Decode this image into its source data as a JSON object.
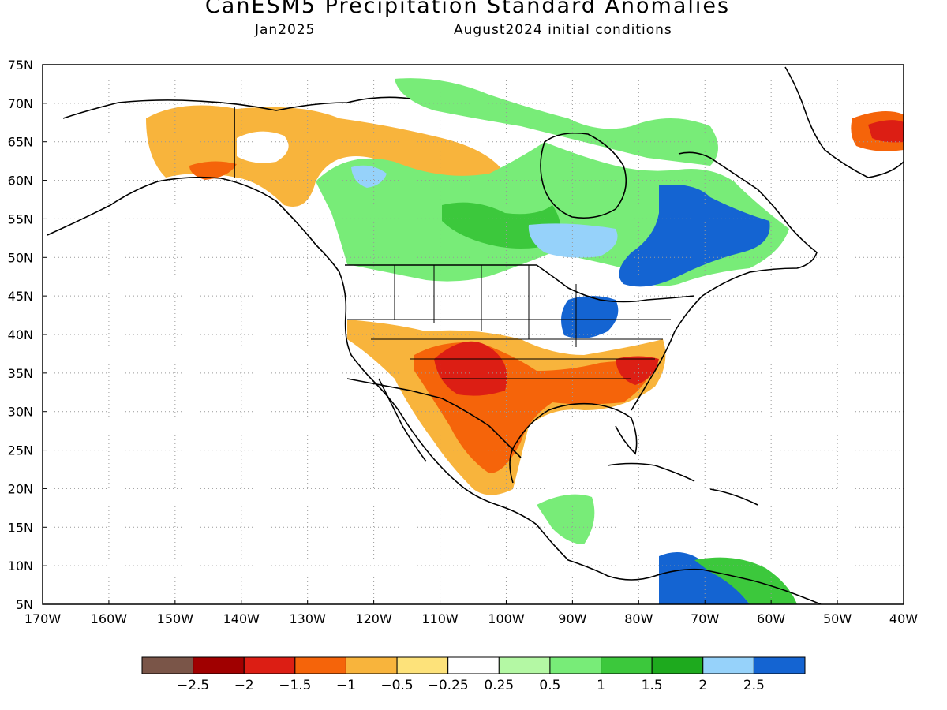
{
  "title": "CanESM5 Precipitation Standard Anomalies",
  "valid_month": "Jan2025",
  "initial_conditions": "August2024 initial conditions",
  "map": {
    "lon_range": [
      -170,
      -40
    ],
    "lat_range": [
      5,
      75
    ],
    "lon_ticks": [
      {
        "value": -170,
        "label": "170W"
      },
      {
        "value": -160,
        "label": "160W"
      },
      {
        "value": -150,
        "label": "150W"
      },
      {
        "value": -140,
        "label": "140W"
      },
      {
        "value": -130,
        "label": "130W"
      },
      {
        "value": -120,
        "label": "120W"
      },
      {
        "value": -110,
        "label": "110W"
      },
      {
        "value": -100,
        "label": "100W"
      },
      {
        "value": -90,
        "label": "90W"
      },
      {
        "value": -80,
        "label": "80W"
      },
      {
        "value": -70,
        "label": "70W"
      },
      {
        "value": -60,
        "label": "60W"
      },
      {
        "value": -50,
        "label": "50W"
      },
      {
        "value": -40,
        "label": "40W"
      }
    ],
    "lat_ticks": [
      {
        "value": 75,
        "label": "75N"
      },
      {
        "value": 70,
        "label": "70N"
      },
      {
        "value": 65,
        "label": "65N"
      },
      {
        "value": 60,
        "label": "60N"
      },
      {
        "value": 55,
        "label": "55N"
      },
      {
        "value": 50,
        "label": "50N"
      },
      {
        "value": 45,
        "label": "45N"
      },
      {
        "value": 40,
        "label": "40N"
      },
      {
        "value": 35,
        "label": "35N"
      },
      {
        "value": 30,
        "label": "30N"
      },
      {
        "value": 25,
        "label": "25N"
      },
      {
        "value": 20,
        "label": "20N"
      },
      {
        "value": 15,
        "label": "15N"
      },
      {
        "value": 10,
        "label": "10N"
      },
      {
        "value": 5,
        "label": "5N"
      }
    ]
  },
  "colorbar": {
    "colors": [
      "#7a5548",
      "#a00000",
      "#dc1e14",
      "#f5640a",
      "#f8b43c",
      "#fde27a",
      "#ffffff",
      "#b4f8a4",
      "#78ec78",
      "#3cc83c",
      "#1eaa1e",
      "#96d2fa",
      "#1464d2"
    ],
    "labels": [
      "-2.5",
      "-2",
      "-1.5",
      "-1",
      "-0.5",
      "-0.25",
      "0.25",
      "0.5",
      "1",
      "1.5",
      "2",
      "2.5"
    ]
  }
}
